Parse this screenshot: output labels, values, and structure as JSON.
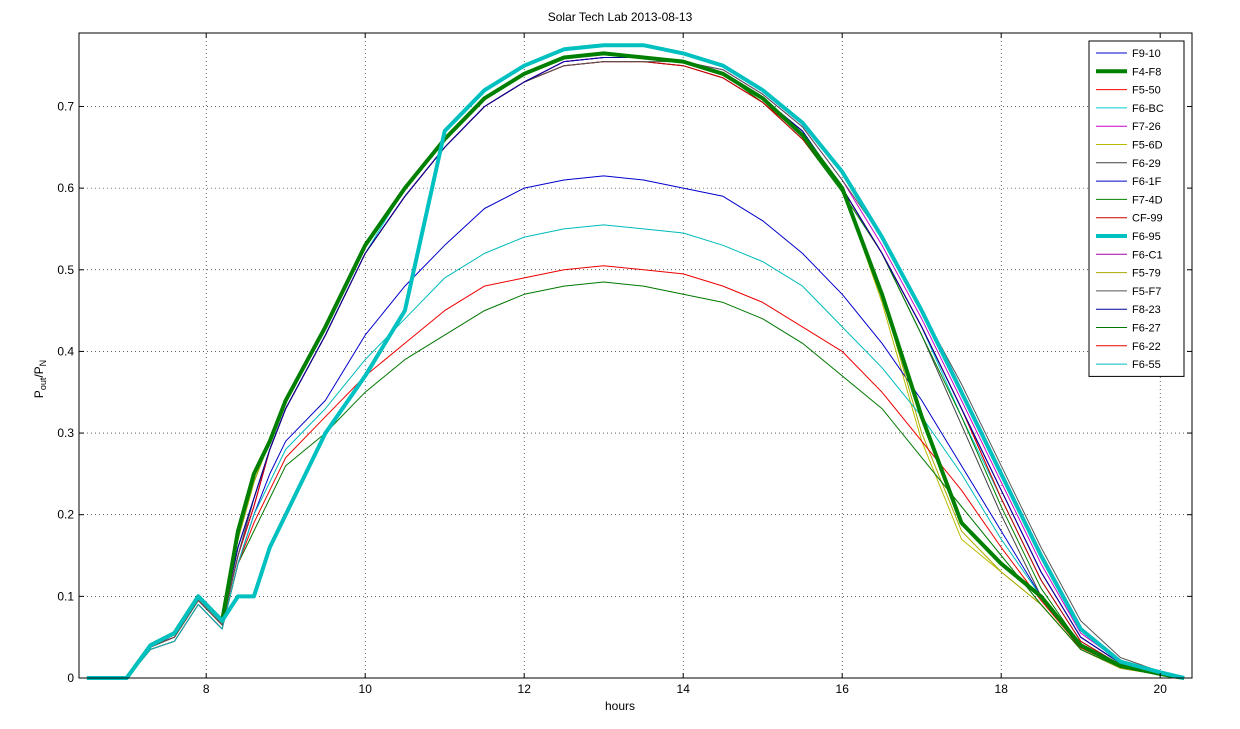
{
  "chart_data": {
    "type": "line",
    "title": "Solar Tech Lab 2013-08-13",
    "xlabel": "hours",
    "ylabel_main": "P",
    "ylabel_num_sub": "out",
    "ylabel_sep": "/P",
    "ylabel_den_sub": "N",
    "xlim": [
      6.4,
      20.4
    ],
    "ylim": [
      0,
      0.79
    ],
    "xticks": [
      "8",
      "10",
      "12",
      "14",
      "16",
      "18",
      "20"
    ],
    "xtick_values": [
      8,
      10,
      12,
      14,
      16,
      18,
      20
    ],
    "yticks": [
      "0",
      "0.1",
      "0.2",
      "0.3",
      "0.4",
      "0.5",
      "0.6",
      "0.7"
    ],
    "ytick_values": [
      0,
      0.1,
      0.2,
      0.3,
      0.4,
      0.5,
      0.6,
      0.7
    ],
    "grid": true,
    "legend_position": "top-right",
    "x_common": [
      6.5,
      7.0,
      7.3,
      7.6,
      7.9,
      8.2,
      8.4,
      8.6,
      8.8,
      9.0,
      9.5,
      10.0,
      10.5,
      11.0,
      11.5,
      12.0,
      12.5,
      13.0,
      13.5,
      14.0,
      14.5,
      15.0,
      15.5,
      16.0,
      16.5,
      17.0,
      17.5,
      18.0,
      18.5,
      19.0,
      19.5,
      20.0,
      20.3
    ],
    "series": [
      {
        "name": "F9-10",
        "color": "#0000cc",
        "width": 1,
        "values": [
          0,
          0,
          0.04,
          0.055,
          0.1,
          0.07,
          0.16,
          0.22,
          0.28,
          0.33,
          0.42,
          0.52,
          0.59,
          0.65,
          0.7,
          0.73,
          0.755,
          0.76,
          0.76,
          0.755,
          0.74,
          0.71,
          0.67,
          0.6,
          0.52,
          0.43,
          0.33,
          0.23,
          0.13,
          0.05,
          0.018,
          0.006,
          0
        ]
      },
      {
        "name": "F4-F8",
        "color": "#008000",
        "width": 4,
        "values": [
          0,
          0,
          0.04,
          0.055,
          0.1,
          0.07,
          0.18,
          0.25,
          0.29,
          0.34,
          0.43,
          0.53,
          0.6,
          0.66,
          0.71,
          0.74,
          0.76,
          0.765,
          0.76,
          0.755,
          0.74,
          0.71,
          0.665,
          0.6,
          0.47,
          0.32,
          0.19,
          0.14,
          0.1,
          0.04,
          0.015,
          0.005,
          0
        ]
      },
      {
        "name": "F5-50",
        "color": "#ff0000",
        "width": 1,
        "values": [
          0,
          0,
          0.038,
          0.05,
          0.095,
          0.065,
          0.15,
          0.21,
          0.28,
          0.33,
          0.42,
          0.52,
          0.59,
          0.65,
          0.7,
          0.73,
          0.75,
          0.755,
          0.755,
          0.75,
          0.735,
          0.705,
          0.665,
          0.6,
          0.52,
          0.43,
          0.33,
          0.22,
          0.12,
          0.045,
          0.016,
          0.006,
          0
        ]
      },
      {
        "name": "F6-BC",
        "color": "#00cccc",
        "width": 1,
        "values": [
          0,
          0,
          0.042,
          0.055,
          0.1,
          0.07,
          0.16,
          0.22,
          0.28,
          0.33,
          0.42,
          0.52,
          0.6,
          0.66,
          0.71,
          0.74,
          0.76,
          0.765,
          0.76,
          0.755,
          0.74,
          0.71,
          0.67,
          0.6,
          0.52,
          0.43,
          0.32,
          0.22,
          0.12,
          0.045,
          0.016,
          0.006,
          0
        ]
      },
      {
        "name": "F7-26",
        "color": "#cc00cc",
        "width": 1,
        "values": [
          0,
          0,
          0.04,
          0.05,
          0.1,
          0.07,
          0.15,
          0.21,
          0.28,
          0.33,
          0.42,
          0.52,
          0.59,
          0.65,
          0.7,
          0.73,
          0.755,
          0.76,
          0.76,
          0.755,
          0.745,
          0.715,
          0.675,
          0.61,
          0.53,
          0.44,
          0.34,
          0.24,
          0.14,
          0.055,
          0.02,
          0.007,
          0
        ]
      },
      {
        "name": "F5-6D",
        "color": "#bbbb00",
        "width": 1,
        "values": [
          0,
          0,
          0.04,
          0.055,
          0.1,
          0.07,
          0.17,
          0.24,
          0.29,
          0.34,
          0.43,
          0.53,
          0.6,
          0.66,
          0.71,
          0.74,
          0.76,
          0.765,
          0.76,
          0.755,
          0.74,
          0.71,
          0.665,
          0.6,
          0.46,
          0.29,
          0.17,
          0.13,
          0.09,
          0.035,
          0.012,
          0.004,
          0
        ]
      },
      {
        "name": "F6-29",
        "color": "#404040",
        "width": 1,
        "values": [
          0,
          0,
          0.038,
          0.05,
          0.095,
          0.065,
          0.15,
          0.22,
          0.28,
          0.33,
          0.42,
          0.52,
          0.59,
          0.65,
          0.7,
          0.73,
          0.75,
          0.755,
          0.755,
          0.75,
          0.735,
          0.705,
          0.66,
          0.6,
          0.52,
          0.42,
          0.31,
          0.2,
          0.1,
          0.035,
          0.012,
          0.004,
          0
        ]
      },
      {
        "name": "F6-1F",
        "color": "#0000cc",
        "width": 1,
        "values": [
          0,
          0,
          0.035,
          0.045,
          0.09,
          0.06,
          0.14,
          0.2,
          0.25,
          0.29,
          0.34,
          0.42,
          0.48,
          0.53,
          0.575,
          0.6,
          0.61,
          0.615,
          0.61,
          0.6,
          0.59,
          0.56,
          0.52,
          0.47,
          0.41,
          0.34,
          0.26,
          0.18,
          0.1,
          0.04,
          0.015,
          0.005,
          0
        ]
      },
      {
        "name": "F7-4D",
        "color": "#008000",
        "width": 1,
        "values": [
          0,
          0,
          0.04,
          0.055,
          0.1,
          0.07,
          0.17,
          0.24,
          0.29,
          0.34,
          0.43,
          0.53,
          0.6,
          0.66,
          0.71,
          0.74,
          0.76,
          0.765,
          0.76,
          0.755,
          0.74,
          0.705,
          0.66,
          0.595,
          0.52,
          0.42,
          0.32,
          0.21,
          0.11,
          0.04,
          0.014,
          0.005,
          0
        ]
      },
      {
        "name": "CF-99",
        "color": "#cc0000",
        "width": 1,
        "values": [
          0,
          0,
          0.038,
          0.05,
          0.095,
          0.065,
          0.15,
          0.21,
          0.28,
          0.33,
          0.42,
          0.52,
          0.59,
          0.65,
          0.7,
          0.73,
          0.75,
          0.755,
          0.755,
          0.75,
          0.735,
          0.705,
          0.66,
          0.6,
          0.52,
          0.43,
          0.33,
          0.22,
          0.12,
          0.045,
          0.016,
          0.006,
          0
        ]
      },
      {
        "name": "F6-95",
        "color": "#00c0c0",
        "width": 4,
        "values": [
          0,
          0,
          0.04,
          0.055,
          0.1,
          0.07,
          0.1,
          0.1,
          0.16,
          0.2,
          0.3,
          0.37,
          0.45,
          0.67,
          0.72,
          0.75,
          0.77,
          0.775,
          0.775,
          0.765,
          0.75,
          0.72,
          0.68,
          0.62,
          0.54,
          0.45,
          0.35,
          0.25,
          0.15,
          0.06,
          0.02,
          0.007,
          0
        ]
      },
      {
        "name": "F6-C1",
        "color": "#aa00aa",
        "width": 1,
        "values": [
          0,
          0,
          0.04,
          0.055,
          0.1,
          0.07,
          0.16,
          0.22,
          0.28,
          0.33,
          0.42,
          0.52,
          0.59,
          0.65,
          0.7,
          0.73,
          0.755,
          0.76,
          0.76,
          0.755,
          0.74,
          0.71,
          0.67,
          0.6,
          0.52,
          0.43,
          0.33,
          0.23,
          0.13,
          0.05,
          0.018,
          0.006,
          0
        ]
      },
      {
        "name": "F5-79",
        "color": "#aaaa00",
        "width": 1,
        "values": [
          0,
          0,
          0.04,
          0.055,
          0.1,
          0.07,
          0.17,
          0.24,
          0.29,
          0.34,
          0.43,
          0.53,
          0.6,
          0.66,
          0.71,
          0.74,
          0.76,
          0.765,
          0.76,
          0.755,
          0.74,
          0.71,
          0.665,
          0.6,
          0.47,
          0.3,
          0.18,
          0.13,
          0.09,
          0.035,
          0.012,
          0.004,
          0
        ]
      },
      {
        "name": "F5-F7",
        "color": "#555555",
        "width": 1,
        "values": [
          0,
          0,
          0.038,
          0.05,
          0.095,
          0.065,
          0.15,
          0.22,
          0.28,
          0.33,
          0.42,
          0.52,
          0.59,
          0.65,
          0.7,
          0.73,
          0.75,
          0.755,
          0.755,
          0.755,
          0.745,
          0.715,
          0.675,
          0.61,
          0.54,
          0.45,
          0.36,
          0.26,
          0.16,
          0.07,
          0.025,
          0.008,
          0
        ]
      },
      {
        "name": "F8-23",
        "color": "#000099",
        "width": 1,
        "values": [
          0,
          0,
          0.04,
          0.055,
          0.1,
          0.07,
          0.16,
          0.22,
          0.28,
          0.33,
          0.42,
          0.52,
          0.59,
          0.65,
          0.7,
          0.73,
          0.755,
          0.76,
          0.76,
          0.755,
          0.74,
          0.71,
          0.67,
          0.6,
          0.52,
          0.43,
          0.33,
          0.23,
          0.13,
          0.05,
          0.018,
          0.006,
          0
        ]
      },
      {
        "name": "F6-27",
        "color": "#007700",
        "width": 1,
        "values": [
          0,
          0,
          0.035,
          0.045,
          0.09,
          0.06,
          0.14,
          0.18,
          0.22,
          0.26,
          0.3,
          0.35,
          0.39,
          0.42,
          0.45,
          0.47,
          0.48,
          0.485,
          0.48,
          0.47,
          0.46,
          0.44,
          0.41,
          0.37,
          0.33,
          0.27,
          0.21,
          0.15,
          0.09,
          0.035,
          0.013,
          0.004,
          0
        ]
      },
      {
        "name": "F6-22",
        "color": "#ee0000",
        "width": 1,
        "values": [
          0,
          0,
          0.035,
          0.045,
          0.09,
          0.06,
          0.14,
          0.19,
          0.23,
          0.27,
          0.32,
          0.37,
          0.41,
          0.45,
          0.48,
          0.49,
          0.5,
          0.505,
          0.5,
          0.495,
          0.48,
          0.46,
          0.43,
          0.4,
          0.35,
          0.29,
          0.23,
          0.16,
          0.095,
          0.037,
          0.014,
          0.005,
          0
        ]
      },
      {
        "name": "F6-55",
        "color": "#00bbbb",
        "width": 1,
        "values": [
          0,
          0,
          0.035,
          0.045,
          0.09,
          0.06,
          0.14,
          0.2,
          0.24,
          0.28,
          0.33,
          0.39,
          0.44,
          0.49,
          0.52,
          0.54,
          0.55,
          0.555,
          0.55,
          0.545,
          0.53,
          0.51,
          0.48,
          0.43,
          0.38,
          0.32,
          0.25,
          0.17,
          0.1,
          0.04,
          0.015,
          0.005,
          0
        ]
      }
    ]
  }
}
